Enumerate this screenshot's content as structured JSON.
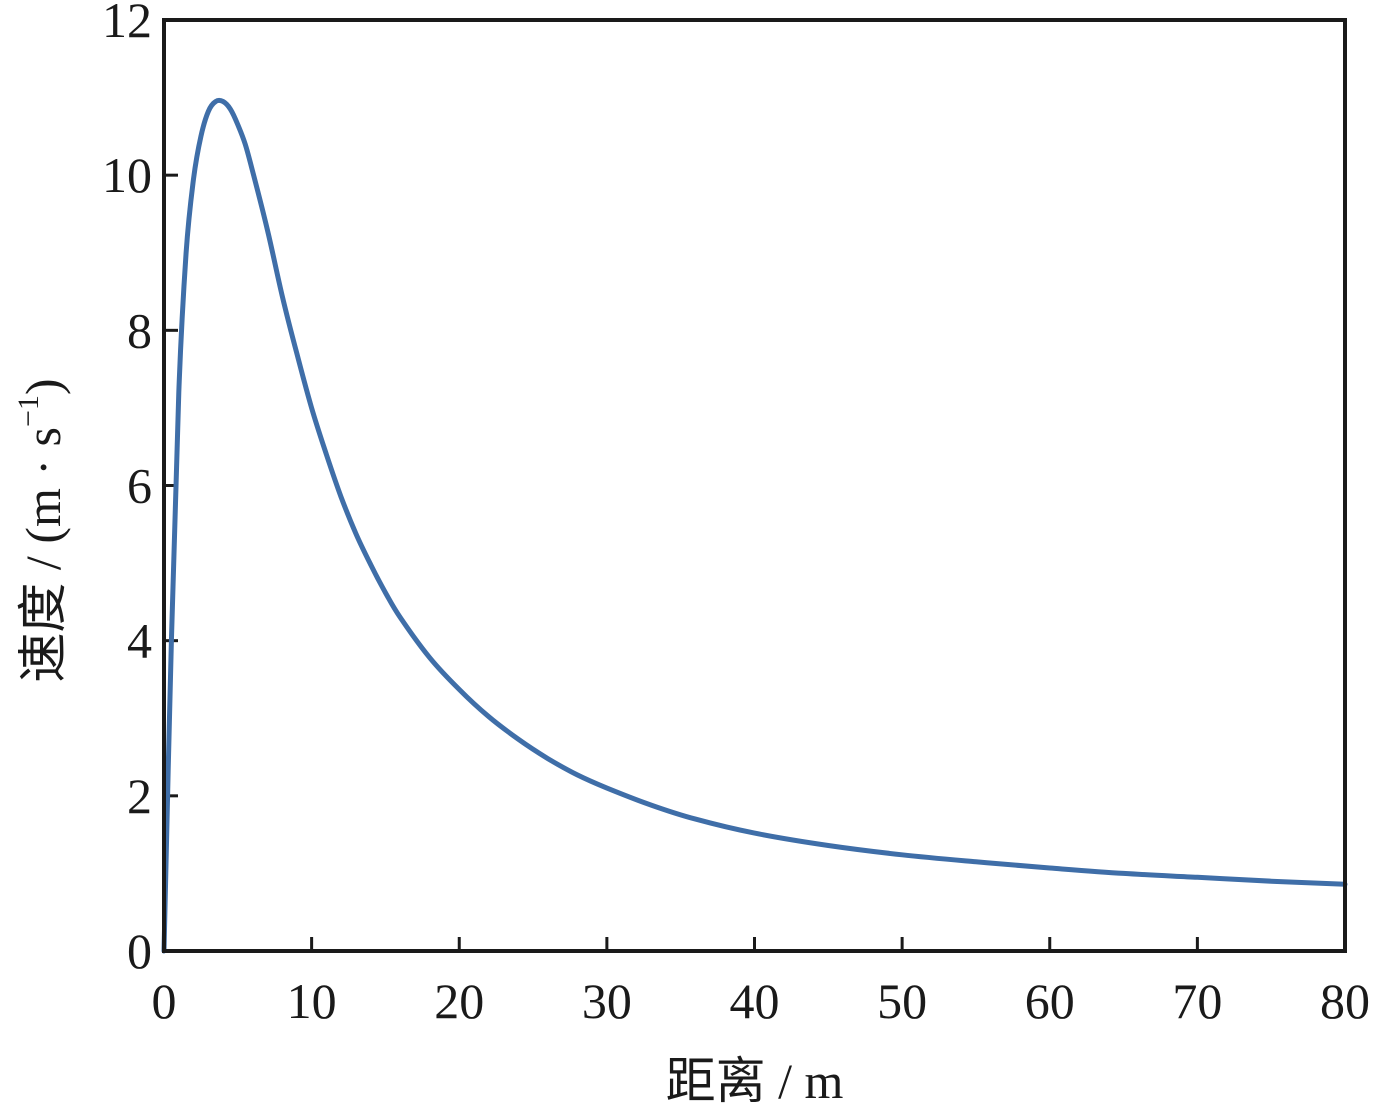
{
  "chart_data": {
    "type": "line",
    "xlabel": "距离 / m",
    "ylabel": {
      "prefix": "速度 / (m · s",
      "sup": "−1",
      "suffix": ")"
    },
    "xlim": [
      0,
      80
    ],
    "ylim": [
      0,
      12
    ],
    "x_ticks": [
      "0",
      "10",
      "20",
      "30",
      "40",
      "50",
      "60",
      "70",
      "80"
    ],
    "y_ticks": [
      "0",
      "2",
      "4",
      "6",
      "8",
      "10",
      "12"
    ],
    "grid": false,
    "series": [
      {
        "color": "#3f6ea8",
        "x": [
          0,
          0.5,
          1,
          1.5,
          2,
          2.5,
          3,
          3.5,
          4,
          4.5,
          5,
          5.5,
          6,
          7,
          8,
          9,
          10,
          11,
          12,
          13,
          14,
          15,
          16,
          18,
          20,
          22,
          24,
          26,
          28,
          30,
          33,
          36,
          40,
          45,
          50,
          55,
          60,
          65,
          70,
          75,
          80
        ],
        "y": [
          0,
          4.0,
          7.2,
          9.0,
          9.95,
          10.5,
          10.82,
          10.95,
          10.95,
          10.85,
          10.65,
          10.4,
          10.05,
          9.3,
          8.45,
          7.7,
          7.0,
          6.4,
          5.85,
          5.38,
          4.98,
          4.62,
          4.3,
          3.78,
          3.37,
          3.02,
          2.73,
          2.48,
          2.27,
          2.1,
          1.88,
          1.7,
          1.52,
          1.36,
          1.24,
          1.15,
          1.07,
          1.0,
          0.95,
          0.9,
          0.86
        ]
      }
    ]
  }
}
